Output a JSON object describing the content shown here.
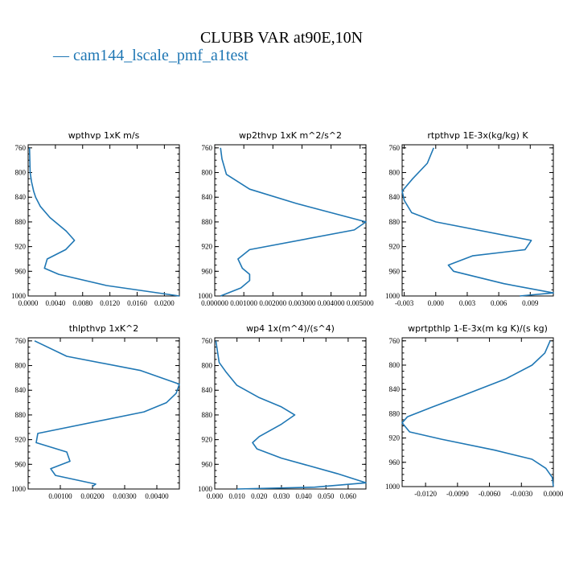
{
  "title": "CLUBB VAR at90E,10N",
  "legend": {
    "label": "cam144_lscale_pmf_a1test",
    "color": "#1f77b4"
  },
  "chart_data": [
    {
      "type": "line",
      "title": "wpthvp  1xK m/s",
      "xlim": [
        0.0,
        0.0222
      ],
      "ylim": [
        755,
        1000
      ],
      "xticks": [
        0.0,
        0.004,
        0.008,
        0.012,
        0.016,
        0.02
      ],
      "xtick_labels": [
        "0.0000",
        "0.0040",
        "0.0080",
        "0.0120",
        "0.0160",
        "0.0200"
      ],
      "yticks": [
        760,
        800,
        840,
        880,
        920,
        960,
        1000
      ],
      "series": [
        {
          "x": [
            0.0002,
            0.0003,
            0.0005,
            0.0008,
            0.0011,
            0.0018,
            0.0032,
            0.0056,
            0.0068,
            0.0055,
            0.0028,
            0.0024,
            0.0045,
            0.0115,
            0.0222
          ],
          "p": [
            760,
            800,
            815,
            830,
            840,
            855,
            873,
            895,
            910,
            925,
            940,
            955,
            965,
            983,
            1000
          ]
        }
      ]
    },
    {
      "type": "line",
      "title": "wp2thvp  1xK m^2/s^2",
      "xlim": [
        0.0,
        0.0052
      ],
      "ylim": [
        755,
        1000
      ],
      "xticks": [
        0.0,
        0.001,
        0.002,
        0.003,
        0.004,
        0.005
      ],
      "xtick_labels": [
        "0.000000",
        "0.001000",
        "0.002000",
        "0.003000",
        "0.004000",
        "0.005000"
      ],
      "yticks": [
        760,
        800,
        840,
        880,
        920,
        960,
        1000
      ],
      "series": [
        {
          "x": [
            0.0002,
            0.00025,
            0.0004,
            0.0012,
            0.0028,
            0.0052,
            0.0048,
            0.0012,
            0.0008,
            0.00095,
            0.0012,
            0.0012,
            0.0009,
            0.0002
          ],
          "p": [
            760,
            778,
            803,
            827,
            850,
            880,
            893,
            925,
            940,
            955,
            965,
            975,
            987,
            1000
          ]
        }
      ]
    },
    {
      "type": "line",
      "title": "rtpthvp  1E-3x(kg/kg) K",
      "xlim": [
        -0.0032,
        0.0112
      ],
      "ylim": [
        755,
        1000
      ],
      "xticks": [
        -0.003,
        0.0,
        0.003,
        0.006,
        0.009
      ],
      "xtick_labels": [
        "-0.003",
        "0.000",
        "0.003",
        "0.006",
        "0.009"
      ],
      "yticks": [
        760,
        800,
        840,
        880,
        920,
        960,
        1000
      ],
      "series": [
        {
          "x": [
            -0.0002,
            -0.0008,
            -0.0022,
            -0.0032,
            -0.003,
            -0.0023,
            0.0,
            0.0091,
            0.0085,
            0.0035,
            0.0012,
            0.0017,
            0.0065,
            0.0112,
            0.008
          ],
          "p": [
            760,
            785,
            810,
            830,
            845,
            865,
            880,
            910,
            925,
            935,
            950,
            960,
            980,
            995,
            1000
          ]
        }
      ]
    },
    {
      "type": "line",
      "title": "thlpthvp  1xK^2",
      "xlim": [
        0.0,
        0.0047
      ],
      "ylim": [
        755,
        1000
      ],
      "xticks": [
        0.001,
        0.002,
        0.003,
        0.004
      ],
      "xtick_labels": [
        "0.00100",
        "0.00200",
        "0.00300",
        "0.00400"
      ],
      "yticks": [
        760,
        800,
        840,
        880,
        920,
        960,
        1000
      ],
      "series": [
        {
          "x": [
            0.0002,
            0.0012,
            0.0035,
            0.0047,
            0.0046,
            0.0043,
            0.0036,
            0.0003,
            0.00025,
            0.0012,
            0.0013,
            0.0007,
            0.00085,
            0.0021,
            0.002
          ],
          "p": [
            760,
            785,
            808,
            830,
            845,
            860,
            875,
            910,
            925,
            940,
            955,
            967,
            978,
            992,
            996
          ]
        }
      ]
    },
    {
      "type": "line",
      "title": "wp4  1x(m^4)/(s^4)",
      "xlim": [
        0.0,
        0.068
      ],
      "ylim": [
        755,
        1000
      ],
      "xticks": [
        0.0,
        0.01,
        0.02,
        0.03,
        0.04,
        0.05,
        0.06
      ],
      "xtick_labels": [
        "0.000",
        "0.010",
        "0.020",
        "0.030",
        "0.040",
        "0.050",
        "0.060"
      ],
      "yticks": [
        760,
        800,
        840,
        880,
        920,
        960,
        1000
      ],
      "series": [
        {
          "x": [
            0.0005,
            0.002,
            0.005,
            0.01,
            0.02,
            0.03,
            0.036,
            0.03,
            0.02,
            0.017,
            0.019,
            0.03,
            0.055,
            0.068,
            0.045,
            0.01
          ],
          "p": [
            760,
            795,
            810,
            832,
            852,
            867,
            880,
            895,
            915,
            925,
            935,
            950,
            975,
            990,
            997,
            1000
          ]
        }
      ]
    },
    {
      "type": "line",
      "title": "wprtpthlp  1-E-3x(m kg K)/(s kg)",
      "xlim": [
        -0.0142,
        0.0
      ],
      "ylim": [
        755,
        1000
      ],
      "xticks": [
        -0.012,
        -0.009,
        -0.006,
        -0.003,
        0.0
      ],
      "xtick_labels": [
        "-0.0120",
        "-0.0090",
        "-0.0060",
        "-0.0030",
        "0.0000"
      ],
      "yticks": [
        760,
        800,
        840,
        880,
        920,
        960,
        1000
      ],
      "series": [
        {
          "x": [
            -0.0003,
            -0.0008,
            -0.002,
            -0.0045,
            -0.0085,
            -0.0115,
            -0.0137,
            -0.0142,
            -0.0135,
            -0.0105,
            -0.0055,
            -0.002,
            -0.0007,
            -0.0001,
            0.0
          ],
          "p": [
            760,
            780,
            800,
            823,
            850,
            870,
            885,
            895,
            910,
            922,
            940,
            955,
            970,
            985,
            1000
          ]
        }
      ]
    }
  ]
}
